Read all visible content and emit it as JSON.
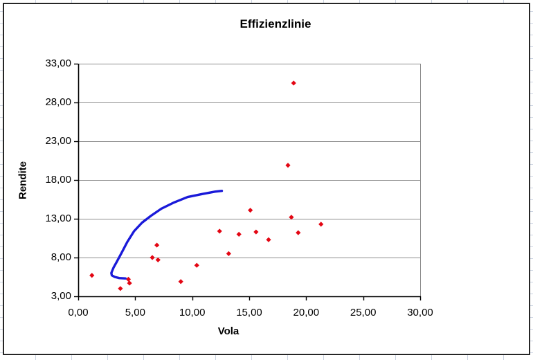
{
  "chart_data": {
    "type": "scatter",
    "title": "Effizienzlinie",
    "xlabel": "Vola",
    "ylabel": "Rendite",
    "xlim": [
      0,
      30
    ],
    "ylim": [
      3,
      33
    ],
    "x_ticks": [
      0,
      5,
      10,
      15,
      20,
      25,
      30
    ],
    "x_tick_labels": [
      "0,00",
      "5,00",
      "10,00",
      "15,00",
      "20,00",
      "25,00",
      "30,00"
    ],
    "y_ticks": [
      3,
      8,
      13,
      18,
      23,
      28,
      33
    ],
    "y_tick_labels": [
      "3,00",
      "8,00",
      "13,00",
      "18,00",
      "23,00",
      "28,00",
      "33,00"
    ],
    "grid": "horizontal",
    "legend": "none",
    "colors": {
      "marker": "#e30613",
      "frontier_line": "#1a1ad9",
      "gridline": "#8c8c8c",
      "axis": "#000000"
    },
    "series": [
      {
        "name": "portfolio-points",
        "type": "scatter",
        "marker": "diamond",
        "color": "#e30613",
        "points": [
          [
            1.2,
            5.7
          ],
          [
            3.7,
            4.0
          ],
          [
            4.4,
            5.2
          ],
          [
            4.5,
            4.7
          ],
          [
            6.5,
            8.0
          ],
          [
            6.9,
            9.6
          ],
          [
            7.0,
            7.7
          ],
          [
            9.0,
            4.9
          ],
          [
            10.4,
            7.0
          ],
          [
            12.4,
            11.4
          ],
          [
            13.2,
            8.5
          ],
          [
            14.1,
            11.0
          ],
          [
            15.1,
            14.1
          ],
          [
            15.6,
            11.3
          ],
          [
            16.7,
            10.3
          ],
          [
            18.4,
            19.9
          ],
          [
            18.7,
            13.2
          ],
          [
            18.9,
            30.5
          ],
          [
            19.3,
            11.2
          ],
          [
            21.3,
            12.3
          ]
        ]
      },
      {
        "name": "efficiency-frontier",
        "type": "line",
        "color": "#1a1ad9",
        "points": [
          [
            4.15,
            5.3
          ],
          [
            3.6,
            5.35
          ],
          [
            3.2,
            5.5
          ],
          [
            2.95,
            5.7
          ],
          [
            2.9,
            6.0
          ],
          [
            3.1,
            6.7
          ],
          [
            3.4,
            7.5
          ],
          [
            3.8,
            8.6
          ],
          [
            4.3,
            10.0
          ],
          [
            4.9,
            11.4
          ],
          [
            5.6,
            12.5
          ],
          [
            6.4,
            13.4
          ],
          [
            7.3,
            14.3
          ],
          [
            8.4,
            15.1
          ],
          [
            9.6,
            15.8
          ],
          [
            10.9,
            16.2
          ],
          [
            12.0,
            16.5
          ],
          [
            12.6,
            16.6
          ]
        ]
      }
    ]
  }
}
